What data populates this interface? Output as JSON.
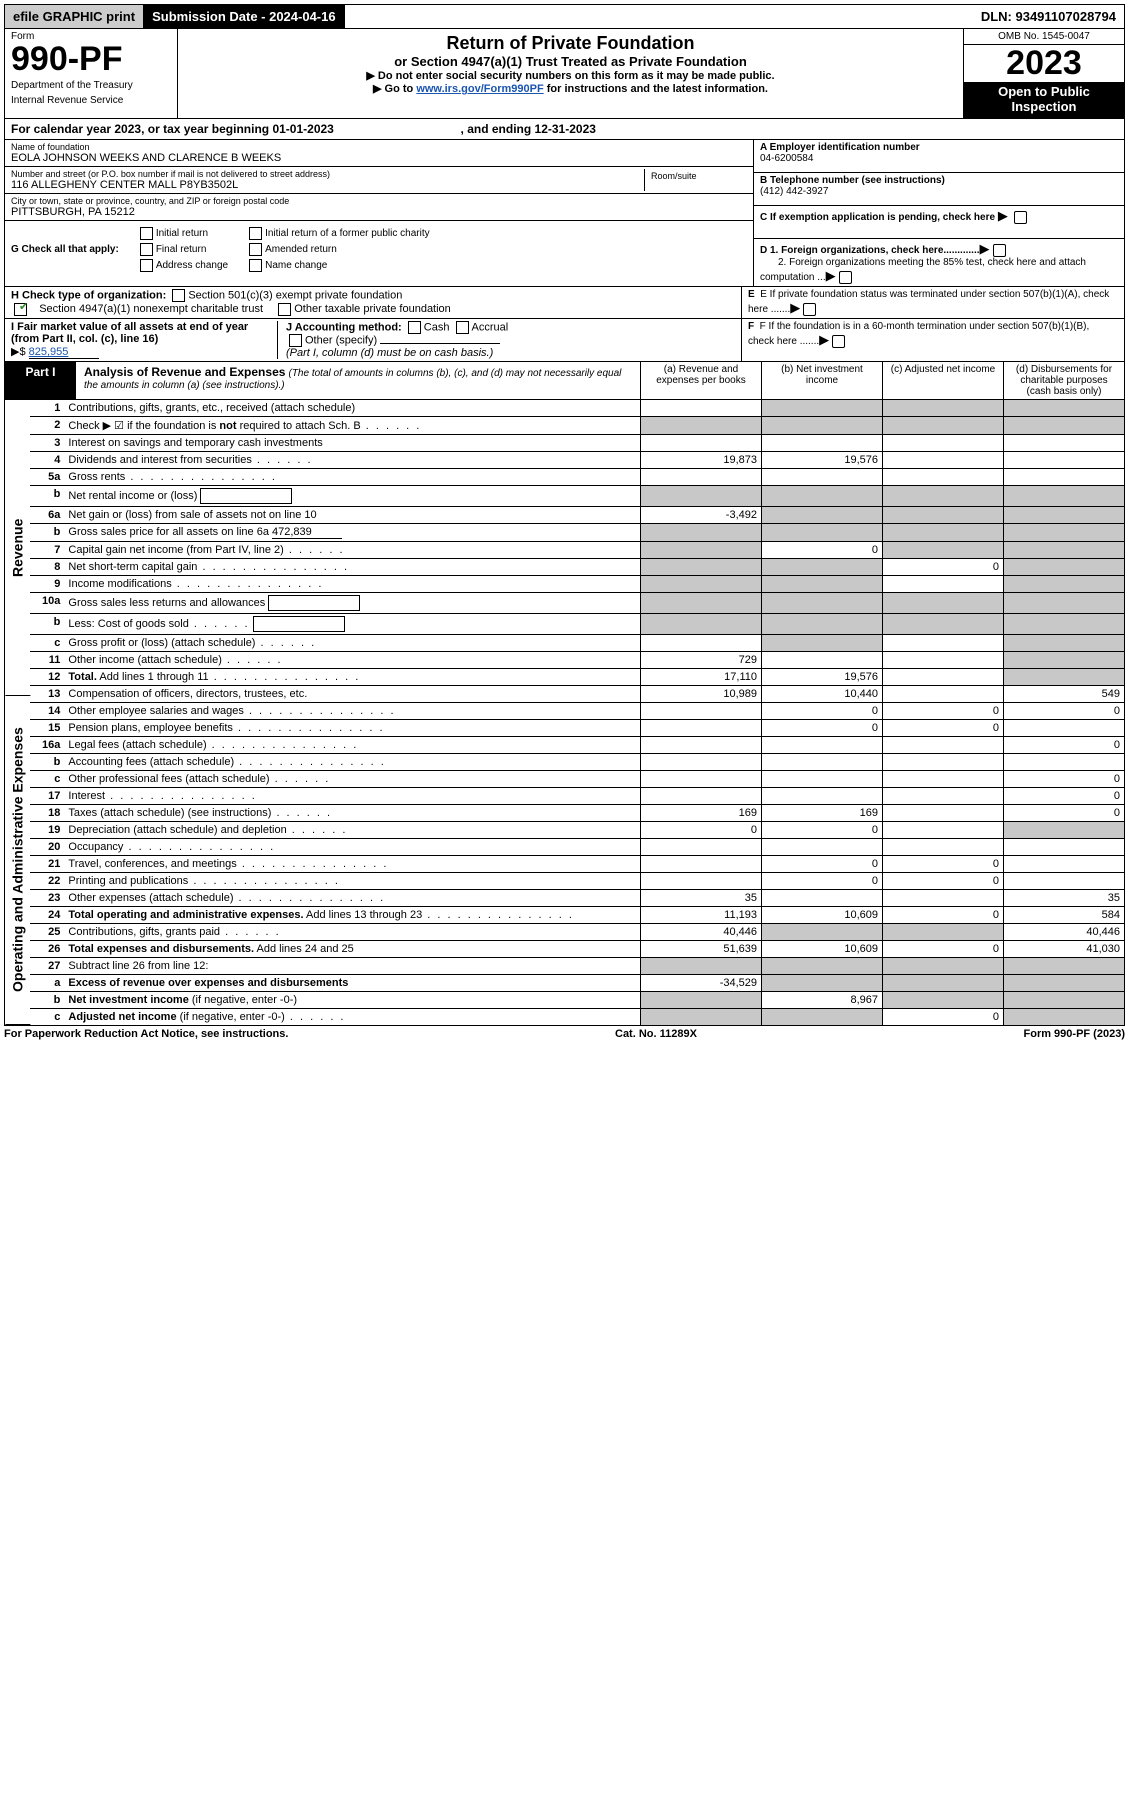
{
  "top": {
    "efile": "efile GRAPHIC print",
    "sub_date_label": "Submission Date - 2024-04-16",
    "dln": "DLN: 93491107028794"
  },
  "header": {
    "form_word": "Form",
    "form_number": "990-PF",
    "dept": "Department of the Treasury",
    "irs": "Internal Revenue Service",
    "title": "Return of Private Foundation",
    "subtitle": "or Section 4947(a)(1) Trust Treated as Private Foundation",
    "instr1": "▶ Do not enter social security numbers on this form as it may be made public.",
    "instr2_pre": "▶ Go to ",
    "instr2_link": "www.irs.gov/Form990PF",
    "instr2_post": " for instructions and the latest information.",
    "omb": "OMB No. 1545-0047",
    "year": "2023",
    "open": "Open to Public Inspection"
  },
  "caly": {
    "pre": "For calendar year 2023, or tax year beginning ",
    "beg": "01-01-2023",
    "mid": ", and ending ",
    "end": "12-31-2023"
  },
  "id": {
    "name_lbl": "Name of foundation",
    "name": "EOLA JOHNSON WEEKS AND CLARENCE B WEEKS",
    "addr_lbl": "Number and street (or P.O. box number if mail is not delivered to street address)",
    "addr": "116 ALLEGHENY CENTER MALL P8YB3502L",
    "room_lbl": "Room/suite",
    "city_lbl": "City or town, state or province, country, and ZIP or foreign postal code",
    "city": "PITTSBURGH, PA  15212",
    "a_lbl": "A Employer identification number",
    "a_val": "04-6200584",
    "b_lbl": "B Telephone number (see instructions)",
    "b_val": "(412) 442-3927",
    "c_lbl": "C If exemption application is pending, check here",
    "d1": "D 1. Foreign organizations, check here.............",
    "d2": "2. Foreign organizations meeting the 85% test, check here and attach computation ...",
    "e": "E  If private foundation status was terminated under section 507(b)(1)(A), check here .......",
    "f": "F  If the foundation is in a 60-month termination under section 507(b)(1)(B), check here ......."
  },
  "g": {
    "lbl": "G Check all that apply:",
    "o1": "Initial return",
    "o2": "Initial return of a former public charity",
    "o3": "Final return",
    "o4": "Amended return",
    "o5": "Address change",
    "o6": "Name change"
  },
  "h": {
    "lbl": "H Check type of organization:",
    "o1": "Section 501(c)(3) exempt private foundation",
    "o2": "Section 4947(a)(1) nonexempt charitable trust",
    "o3": "Other taxable private foundation"
  },
  "i": {
    "lbl": "I Fair market value of all assets at end of year (from Part II, col. (c), line 16)",
    "arrow": "▶$",
    "val": "825,955"
  },
  "j": {
    "lbl": "J Accounting method:",
    "cash": "Cash",
    "accr": "Accrual",
    "other": "Other (specify)",
    "note": "(Part I, column (d) must be on cash basis.)"
  },
  "part1": {
    "part": "Part I",
    "title": "Analysis of Revenue and Expenses",
    "note": "(The total of amounts in columns (b), (c), and (d) may not necessarily equal the amounts in column (a) (see instructions).)",
    "c_a": "(a)  Revenue and expenses per books",
    "c_b": "(b)  Net investment income",
    "c_c": "(c)  Adjusted net income",
    "c_d": "(d)  Disbursements for charitable purposes (cash basis only)",
    "vtab_rev": "Revenue",
    "vtab_exp": "Operating and Administrative Expenses"
  },
  "rows": [
    {
      "n": "1",
      "d": "Contributions, gifts, grants, etc., received (attach schedule)",
      "a": "",
      "b": "s",
      "c": "s",
      "dd": "s"
    },
    {
      "n": "2",
      "d": "Check ▶ ☑ if the foundation is <b>not</b> required to attach Sch. B",
      "dots": "s",
      "a": "s",
      "b": "s",
      "c": "s",
      "dd": "s"
    },
    {
      "n": "3",
      "d": "Interest on savings and temporary cash investments"
    },
    {
      "n": "4",
      "d": "Dividends and interest from securities",
      "dots": "s",
      "a": "19,873",
      "b": "19,576"
    },
    {
      "n": "5a",
      "d": "Gross rents",
      "dots": "y"
    },
    {
      "n": "b",
      "d": "Net rental income or (loss)",
      "box": true,
      "a": "s",
      "b": "s",
      "c": "s",
      "dd": "s"
    },
    {
      "n": "6a",
      "d": "Net gain or (loss) from sale of assets not on line 10",
      "a": "-3,492",
      "b": "s",
      "c": "s",
      "dd": "s"
    },
    {
      "n": "b",
      "d": "Gross sales price for all assets on line 6a",
      "uval": "472,839",
      "a": "s",
      "b": "s",
      "c": "s",
      "dd": "s"
    },
    {
      "n": "7",
      "d": "Capital gain net income (from Part IV, line 2)",
      "dots": "s",
      "a": "s",
      "b": "0",
      "c": "s",
      "dd": "s"
    },
    {
      "n": "8",
      "d": "Net short-term capital gain",
      "dots": "y",
      "a": "s",
      "b": "s",
      "c": "0",
      "dd": "s"
    },
    {
      "n": "9",
      "d": "Income modifications",
      "dots": "y",
      "a": "s",
      "b": "s",
      "dd": "s"
    },
    {
      "n": "10a",
      "d": "Gross sales less returns and allowances",
      "box": true,
      "a": "s",
      "b": "s",
      "c": "s",
      "dd": "s"
    },
    {
      "n": "b",
      "d": "Less: Cost of goods sold",
      "dots": "s",
      "box": true,
      "a": "s",
      "b": "s",
      "c": "s",
      "dd": "s"
    },
    {
      "n": "c",
      "d": "Gross profit or (loss) (attach schedule)",
      "dots": "s",
      "a": "",
      "b": "s",
      "dd": "s"
    },
    {
      "n": "11",
      "d": "Other income (attach schedule)",
      "dots": "s",
      "a": "729",
      "dd": "s"
    },
    {
      "n": "12",
      "d": "<b>Total.</b> Add lines 1 through 11",
      "dots": "y",
      "a": "17,110",
      "b": "19,576",
      "dd": "s"
    },
    {
      "n": "13",
      "d": "Compensation of officers, directors, trustees, etc.",
      "a": "10,989",
      "b": "10,440",
      "c": "",
      "dd": "549"
    },
    {
      "n": "14",
      "d": "Other employee salaries and wages",
      "dots": "y",
      "b": "0",
      "c": "0",
      "dd": "0"
    },
    {
      "n": "15",
      "d": "Pension plans, employee benefits",
      "dots": "y",
      "b": "0",
      "c": "0"
    },
    {
      "n": "16a",
      "d": "Legal fees (attach schedule)",
      "dots": "y",
      "dd": "0"
    },
    {
      "n": "b",
      "d": "Accounting fees (attach schedule)",
      "dots": "y"
    },
    {
      "n": "c",
      "d": "Other professional fees (attach schedule)",
      "dots": "s",
      "dd": "0"
    },
    {
      "n": "17",
      "d": "Interest",
      "dots": "y",
      "dd": "0"
    },
    {
      "n": "18",
      "d": "Taxes (attach schedule) (see instructions)",
      "dots": "s",
      "a": "169",
      "b": "169",
      "dd": "0"
    },
    {
      "n": "19",
      "d": "Depreciation (attach schedule) and depletion",
      "dots": "s",
      "a": "0",
      "b": "0",
      "dd": "s"
    },
    {
      "n": "20",
      "d": "Occupancy",
      "dots": "y"
    },
    {
      "n": "21",
      "d": "Travel, conferences, and meetings",
      "dots": "y",
      "b": "0",
      "c": "0"
    },
    {
      "n": "22",
      "d": "Printing and publications",
      "dots": "y",
      "b": "0",
      "c": "0"
    },
    {
      "n": "23",
      "d": "Other expenses (attach schedule)",
      "dots": "y",
      "a": "35",
      "dd": "35"
    },
    {
      "n": "24",
      "d": "<b>Total operating and administrative expenses.</b> Add lines 13 through 23",
      "dots": "y",
      "a": "11,193",
      "b": "10,609",
      "c": "0",
      "dd": "584"
    },
    {
      "n": "25",
      "d": "Contributions, gifts, grants paid",
      "dots": "s",
      "a": "40,446",
      "b": "s",
      "c": "s",
      "dd": "40,446"
    },
    {
      "n": "26",
      "d": "<b>Total expenses and disbursements.</b> Add lines 24 and 25",
      "a": "51,639",
      "b": "10,609",
      "c": "0",
      "dd": "41,030"
    },
    {
      "n": "27",
      "d": "Subtract line 26 from line 12:",
      "a": "s",
      "b": "s",
      "c": "s",
      "dd": "s"
    },
    {
      "n": "a",
      "d": "<b>Excess of revenue over expenses and disbursements</b>",
      "a": "-34,529",
      "b": "s",
      "c": "s",
      "dd": "s"
    },
    {
      "n": "b",
      "d": "<b>Net investment income</b> (if negative, enter -0-)",
      "a": "s",
      "b": "8,967",
      "c": "s",
      "dd": "s"
    },
    {
      "n": "c",
      "d": "<b>Adjusted net income</b> (if negative, enter -0-)",
      "dots": "s",
      "a": "s",
      "b": "s",
      "c": "0",
      "dd": "s"
    }
  ],
  "footer": {
    "l": "For Paperwork Reduction Act Notice, see instructions.",
    "m": "Cat. No. 11289X",
    "r": "Form 990-PF (2023)"
  }
}
